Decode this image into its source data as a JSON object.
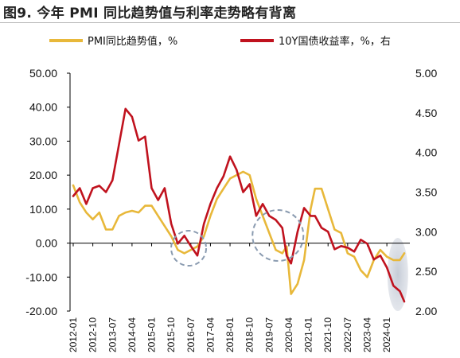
{
  "title": "图9. 今年 PMI 同比趋势值与利率走势略有背离",
  "colors": {
    "pmi": "#E8B83A",
    "yield": "#C0121E",
    "highlight_fill": "#C9CFDB",
    "circle": "#8A9BB0"
  },
  "chart_data": {
    "type": "line",
    "title": "图9. 今年 PMI 同比趋势值与利率走势略有背离",
    "x_ticks": [
      "2012-01",
      "2012-10",
      "2013-07",
      "2014-04",
      "2015-01",
      "2015-10",
      "2016-07",
      "2017-04",
      "2018-01",
      "2018-10",
      "2019-07",
      "2020-04",
      "2021-01",
      "2021-10",
      "2022-07",
      "2023-04",
      "2024-01"
    ],
    "x_range": [
      "2012-01",
      "2024-09"
    ],
    "y_left": {
      "lim": [
        -20,
        50
      ],
      "ticks": [
        "50.00",
        "40.00",
        "30.00",
        "20.00",
        "10.00",
        "0.00",
        "-10.00",
        "-20.00"
      ]
    },
    "y_right": {
      "lim": [
        2.0,
        5.0
      ],
      "ticks": [
        "5.00",
        "4.50",
        "4.00",
        "3.50",
        "3.00",
        "2.50",
        "2.00"
      ]
    },
    "legend": {
      "position": "top"
    },
    "series": [
      {
        "name": "PMI同比趋势值，%",
        "axis": "left",
        "points": [
          [
            "2012-01",
            17
          ],
          [
            "2012-04",
            12
          ],
          [
            "2012-07",
            9
          ],
          [
            "2012-10",
            7
          ],
          [
            "2013-01",
            9
          ],
          [
            "2013-04",
            4
          ],
          [
            "2013-07",
            4
          ],
          [
            "2013-10",
            8
          ],
          [
            "2014-01",
            9
          ],
          [
            "2014-04",
            9.5
          ],
          [
            "2014-07",
            9
          ],
          [
            "2014-10",
            11
          ],
          [
            "2015-01",
            11
          ],
          [
            "2015-04",
            8
          ],
          [
            "2015-07",
            5
          ],
          [
            "2015-10",
            2
          ],
          [
            "2016-01",
            -2
          ],
          [
            "2016-04",
            -3
          ],
          [
            "2016-07",
            -2
          ],
          [
            "2016-10",
            -1
          ],
          [
            "2017-01",
            2
          ],
          [
            "2017-04",
            8
          ],
          [
            "2017-07",
            13
          ],
          [
            "2017-10",
            16
          ],
          [
            "2018-01",
            19
          ],
          [
            "2018-04",
            20
          ],
          [
            "2018-07",
            21
          ],
          [
            "2018-10",
            20
          ],
          [
            "2019-01",
            13
          ],
          [
            "2019-04",
            8
          ],
          [
            "2019-07",
            3
          ],
          [
            "2019-10",
            -2
          ],
          [
            "2020-01",
            -3
          ],
          [
            "2020-03",
            -1
          ],
          [
            "2020-05",
            -15
          ],
          [
            "2020-08",
            -12
          ],
          [
            "2020-11",
            -5
          ],
          [
            "2021-02",
            10
          ],
          [
            "2021-04",
            16
          ],
          [
            "2021-07",
            16
          ],
          [
            "2021-10",
            10
          ],
          [
            "2022-01",
            4
          ],
          [
            "2022-04",
            3
          ],
          [
            "2022-07",
            -3
          ],
          [
            "2022-10",
            -4
          ],
          [
            "2023-01",
            -8
          ],
          [
            "2023-04",
            -10
          ],
          [
            "2023-07",
            -5
          ],
          [
            "2023-10",
            -2
          ],
          [
            "2024-01",
            -4
          ],
          [
            "2024-04",
            -5
          ],
          [
            "2024-07",
            -5
          ],
          [
            "2024-09",
            -3
          ]
        ]
      },
      {
        "name": "10Y国债收益率，%，右",
        "axis": "right",
        "points": [
          [
            "2012-01",
            3.45
          ],
          [
            "2012-04",
            3.55
          ],
          [
            "2012-07",
            3.35
          ],
          [
            "2012-10",
            3.55
          ],
          [
            "2013-01",
            3.58
          ],
          [
            "2013-04",
            3.5
          ],
          [
            "2013-07",
            3.65
          ],
          [
            "2013-10",
            4.1
          ],
          [
            "2014-01",
            4.55
          ],
          [
            "2014-04",
            4.45
          ],
          [
            "2014-07",
            4.15
          ],
          [
            "2014-10",
            4.2
          ],
          [
            "2015-01",
            3.55
          ],
          [
            "2015-04",
            3.4
          ],
          [
            "2015-07",
            3.55
          ],
          [
            "2015-10",
            3.1
          ],
          [
            "2016-01",
            2.85
          ],
          [
            "2016-04",
            2.95
          ],
          [
            "2016-07",
            2.82
          ],
          [
            "2016-10",
            2.7
          ],
          [
            "2017-01",
            3.1
          ],
          [
            "2017-04",
            3.35
          ],
          [
            "2017-07",
            3.55
          ],
          [
            "2017-10",
            3.7
          ],
          [
            "2018-01",
            3.95
          ],
          [
            "2018-04",
            3.78
          ],
          [
            "2018-07",
            3.5
          ],
          [
            "2018-10",
            3.6
          ],
          [
            "2019-01",
            3.2
          ],
          [
            "2019-04",
            3.35
          ],
          [
            "2019-07",
            3.2
          ],
          [
            "2019-10",
            3.15
          ],
          [
            "2020-01",
            3.05
          ],
          [
            "2020-03",
            2.7
          ],
          [
            "2020-05",
            2.6
          ],
          [
            "2020-08",
            3.0
          ],
          [
            "2020-11",
            3.3
          ],
          [
            "2021-02",
            3.2
          ],
          [
            "2021-04",
            3.2
          ],
          [
            "2021-07",
            3.05
          ],
          [
            "2021-10",
            3.0
          ],
          [
            "2022-01",
            2.78
          ],
          [
            "2022-04",
            2.82
          ],
          [
            "2022-07",
            2.8
          ],
          [
            "2022-10",
            2.75
          ],
          [
            "2023-01",
            2.9
          ],
          [
            "2023-04",
            2.85
          ],
          [
            "2023-07",
            2.65
          ],
          [
            "2023-10",
            2.7
          ],
          [
            "2024-01",
            2.55
          ],
          [
            "2024-04",
            2.32
          ],
          [
            "2024-07",
            2.25
          ],
          [
            "2024-09",
            2.12
          ]
        ]
      }
    ]
  }
}
